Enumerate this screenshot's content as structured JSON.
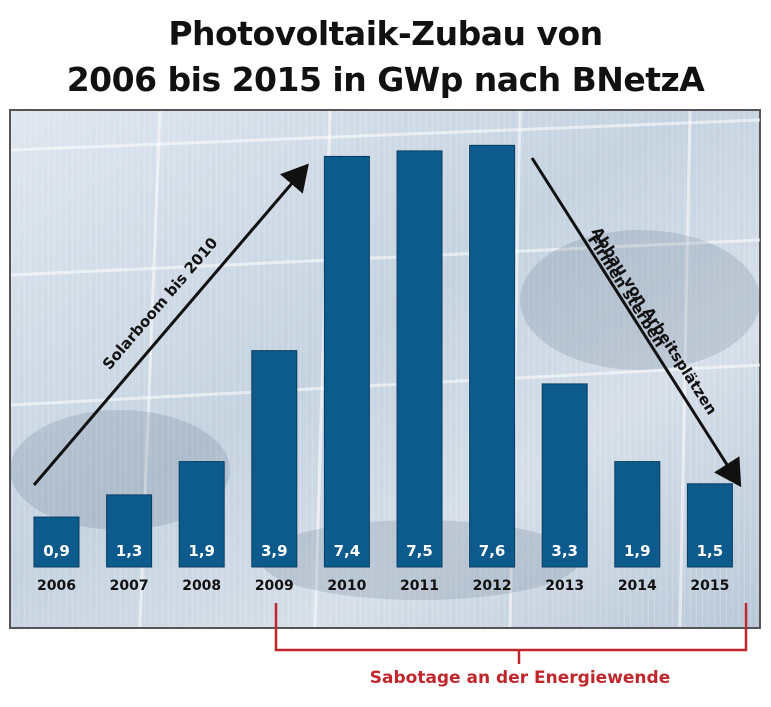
{
  "title_line1": "Photovoltaik-Zubau von",
  "title_line2": "2006 bis 2015 in GWp nach BNetzA",
  "chart_data": {
    "type": "bar",
    "categories": [
      "2006",
      "2007",
      "2008",
      "2009",
      "2010",
      "2011",
      "2012",
      "2013",
      "2014",
      "2015"
    ],
    "values": [
      0.9,
      1.3,
      1.9,
      3.9,
      7.4,
      7.5,
      7.6,
      3.3,
      1.9,
      1.5
    ],
    "value_labels": [
      "0,9",
      "1,3",
      "1,9",
      "3,9",
      "7,4",
      "7,5",
      "7,6",
      "3,3",
      "1,9",
      "1,5"
    ],
    "title": "Photovoltaik-Zubau von 2006 bis 2015 in GWp nach BNetzA",
    "xlabel": "",
    "ylabel": "",
    "ylim": [
      0,
      8
    ],
    "bar_color": "#0d5a8c",
    "annotations": {
      "rise": "Solarboom bis 2010",
      "fall_line1": "Abbau von Arbeitsplätzen",
      "fall_line2": "Firmen sterben",
      "bracket": "Sabotage an der Energiewende"
    },
    "bracket_color": "#c0272d"
  }
}
